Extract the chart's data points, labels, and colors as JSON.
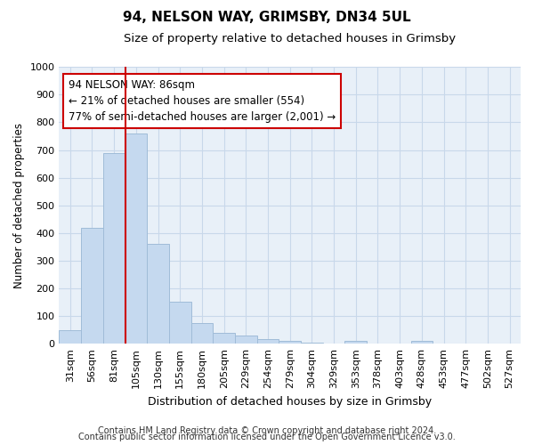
{
  "title_line1": "94, NELSON WAY, GRIMSBY, DN34 5UL",
  "title_line2": "Size of property relative to detached houses in Grimsby",
  "xlabel": "Distribution of detached houses by size in Grimsby",
  "ylabel": "Number of detached properties",
  "footer_line1": "Contains HM Land Registry data © Crown copyright and database right 2024.",
  "footer_line2": "Contains public sector information licensed under the Open Government Licence v3.0.",
  "categories": [
    "31sqm",
    "56sqm",
    "81sqm",
    "105sqm",
    "130sqm",
    "155sqm",
    "180sqm",
    "205sqm",
    "229sqm",
    "254sqm",
    "279sqm",
    "304sqm",
    "329sqm",
    "353sqm",
    "378sqm",
    "403sqm",
    "428sqm",
    "453sqm",
    "477sqm",
    "502sqm",
    "527sqm"
  ],
  "values": [
    50,
    420,
    690,
    760,
    360,
    152,
    75,
    40,
    30,
    18,
    10,
    5,
    0,
    10,
    0,
    0,
    10,
    0,
    0,
    0,
    0
  ],
  "bar_color": "#c5d9ef",
  "bar_edge_color": "#a0bcd8",
  "bar_edge_width": 0.7,
  "vline_color": "#cc0000",
  "vline_x": 2.5,
  "annotation_text": "94 NELSON WAY: 86sqm\n← 21% of detached houses are smaller (554)\n77% of semi-detached houses are larger (2,001) →",
  "annotation_box_color": "#ffffff",
  "annotation_border_color": "#cc0000",
  "ylim": [
    0,
    1000
  ],
  "yticks": [
    0,
    100,
    200,
    300,
    400,
    500,
    600,
    700,
    800,
    900,
    1000
  ],
  "grid_color": "#c8d8ea",
  "background_color": "#e8f0f8",
  "title_fontsize": 11,
  "subtitle_fontsize": 9.5,
  "ylabel_fontsize": 8.5,
  "xlabel_fontsize": 9,
  "tick_fontsize": 8,
  "footer_fontsize": 7,
  "annot_fontsize": 8.5
}
